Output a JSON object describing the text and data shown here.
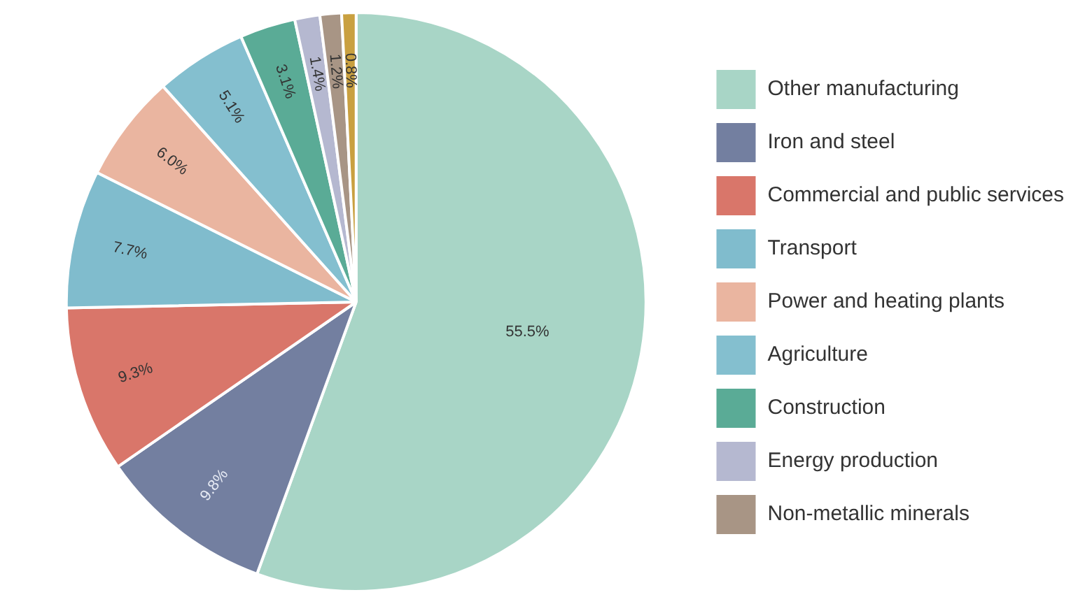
{
  "chart_data": {
    "type": "pie",
    "categories": [
      "Other manufacturing",
      "Iron and steel",
      "Commercial and public services",
      "Transport",
      "Power and heating plants",
      "Agriculture",
      "Construction",
      "Energy production",
      "Non-metallic minerals",
      null
    ],
    "values": [
      55.5,
      9.8,
      9.3,
      7.7,
      6.0,
      5.1,
      3.1,
      1.4,
      1.2,
      0.8
    ],
    "value_labels": [
      "55.5%",
      "9.8%",
      "9.3%",
      "7.7%",
      "6.0%",
      "5.1%",
      "3.1%",
      "1.4%",
      "1.2%",
      "0.8%"
    ],
    "colors": [
      "#a8d5c6",
      "#737fa0",
      "#d9766a",
      "#80bccd",
      "#eab5a0",
      "#84bfcf",
      "#5aab96",
      "#b5b8d0",
      "#a89585",
      "#c9a040"
    ],
    "legend": "right"
  }
}
